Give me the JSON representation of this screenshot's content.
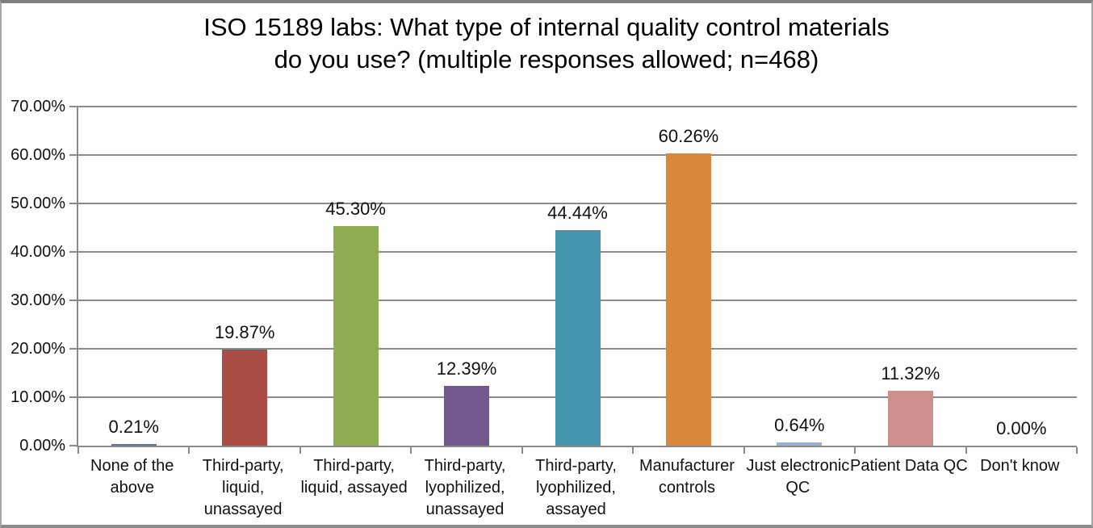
{
  "chart_data": {
    "type": "bar",
    "title": "ISO 15189 labs: What type of internal quality control materials do you use? (multiple responses allowed; n=468)",
    "title_lines": [
      "ISO 15189 labs: What type of internal quality control materials",
      "do you use? (multiple responses allowed; n=468)"
    ],
    "categories": [
      "None of the above",
      "Third-party, liquid, unassayed",
      "Third-party, liquid, assayed",
      "Third-party, lyophilized, unassayed",
      "Third-party, lyophilized, assayed",
      "Manufacturer controls",
      "Just electronic QC",
      "Patient Data QC",
      "Don't know"
    ],
    "category_lines": [
      [
        "None of the",
        "above"
      ],
      [
        "Third-party,",
        "liquid,",
        "unassayed"
      ],
      [
        "Third-party,",
        "liquid, assayed"
      ],
      [
        "Third-party,",
        "lyophilized,",
        "unassayed"
      ],
      [
        "Third-party,",
        "lyophilized,",
        "assayed"
      ],
      [
        "Manufacturer",
        "controls"
      ],
      [
        "Just electronic",
        "QC"
      ],
      [
        "Patient Data QC"
      ],
      [
        "Don't know"
      ]
    ],
    "values": [
      0.21,
      19.87,
      45.3,
      12.39,
      44.44,
      60.26,
      0.64,
      11.32,
      0.0
    ],
    "value_labels": [
      "0.21%",
      "19.87%",
      "45.30%",
      "12.39%",
      "44.44%",
      "60.26%",
      "0.64%",
      "11.32%",
      "0.00%"
    ],
    "bar_colors": [
      "#56789E",
      "#AA4B44",
      "#8FAC51",
      "#73588D",
      "#4497AE",
      "#D9883E",
      "#9BB0D4",
      "#CF908D",
      "#CCCCCC"
    ],
    "y_tick_labels": [
      "70.00%",
      "60.00%",
      "50.00%",
      "40.00%",
      "30.00%",
      "20.00%",
      "10.00%",
      "0.00%"
    ],
    "y_tick_values": [
      70,
      60,
      50,
      40,
      30,
      20,
      10,
      0
    ],
    "ylim": [
      0,
      70
    ],
    "xlabel": "",
    "ylabel": "",
    "grid": true,
    "legend": "none",
    "gridline_color": "#8a8a8a",
    "axis_color": "#8a8a8a"
  }
}
